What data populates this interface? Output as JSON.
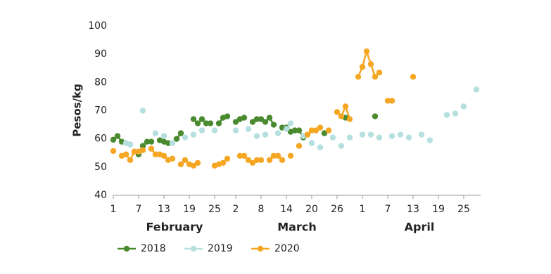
{
  "chart_data": {
    "type": "line",
    "y_label": "Pesos/kg",
    "xlim": [
      1,
      88
    ],
    "ylim": [
      40,
      100
    ],
    "yticks": [
      40,
      50,
      60,
      70,
      80,
      90,
      100
    ],
    "xticks": [
      {
        "value": 1,
        "label": "1"
      },
      {
        "value": 7,
        "label": "7"
      },
      {
        "value": 13,
        "label": "13"
      },
      {
        "value": 19,
        "label": "19"
      },
      {
        "value": 25,
        "label": "25"
      },
      {
        "value": 30,
        "label": "2"
      },
      {
        "value": 36,
        "label": "8"
      },
      {
        "value": 42,
        "label": "14"
      },
      {
        "value": 48,
        "label": "20"
      },
      {
        "value": 54,
        "label": "26"
      },
      {
        "value": 60,
        "label": "1"
      },
      {
        "value": 66,
        "label": "7"
      },
      {
        "value": 72,
        "label": "13"
      },
      {
        "value": 78,
        "label": "19"
      },
      {
        "value": 84,
        "label": "25"
      }
    ],
    "months": [
      "February",
      "March",
      "April"
    ],
    "grid": false,
    "series": [
      {
        "name": "2018",
        "color": "#4a8a2f",
        "x": [
          1,
          2,
          3,
          5,
          7,
          8,
          9,
          10,
          12,
          13,
          14,
          16,
          17,
          20,
          21,
          22,
          23,
          24,
          26,
          27,
          28,
          30,
          31,
          32,
          34,
          35,
          36,
          37,
          38,
          39,
          41,
          42,
          43,
          44,
          45,
          46,
          51,
          56,
          63
        ],
        "values": [
          59.7,
          61,
          59,
          58,
          54.5,
          57.5,
          59,
          59,
          59.5,
          59,
          58.5,
          60,
          62,
          67,
          65.5,
          67,
          65.5,
          65.5,
          65.5,
          67.5,
          68,
          66,
          67,
          67.5,
          66,
          67,
          67,
          66,
          67.5,
          65,
          64,
          64,
          62.5,
          63,
          63,
          60.5,
          62,
          67.5,
          68
        ]
      },
      {
        "name": "2019",
        "color": "#b6dfe0",
        "x": [
          4,
          5,
          8,
          11,
          13,
          15,
          18,
          20,
          22,
          25,
          30,
          33,
          35,
          37,
          40,
          42,
          43,
          46,
          48,
          50,
          53,
          55,
          57,
          60,
          62,
          64,
          67,
          69,
          71,
          74,
          76,
          80,
          82,
          84,
          87
        ],
        "values": [
          58.5,
          58,
          70,
          62,
          61,
          58.5,
          60.5,
          61.5,
          63,
          63,
          63,
          63.5,
          61,
          61.5,
          62,
          63.5,
          65.5,
          61,
          58.5,
          57,
          60.5,
          57.5,
          60.5,
          61.5,
          61.5,
          60.5,
          61,
          61.5,
          60.5,
          61.5,
          59.5,
          68.5,
          69,
          71.5,
          77.5
        ]
      },
      {
        "name": "2020",
        "color": "#f5a623",
        "x": [
          1,
          3,
          4,
          5,
          6,
          7,
          8,
          10,
          11,
          12,
          13,
          14,
          15,
          17,
          18,
          19,
          20,
          21,
          25,
          26,
          27,
          28,
          31,
          32,
          33,
          34,
          35,
          36,
          38,
          39,
          40,
          41,
          43,
          45,
          47,
          48,
          49,
          50,
          52,
          54,
          55,
          56,
          57,
          59,
          60,
          61,
          62,
          63,
          64,
          66,
          67,
          72
        ],
        "values": [
          55.7,
          54,
          54.5,
          52.5,
          55.5,
          55.5,
          56,
          56.5,
          54.5,
          54.5,
          54,
          52.5,
          53,
          51,
          52.5,
          51,
          50.5,
          51.5,
          50.5,
          51,
          51.5,
          53,
          54,
          54,
          52.5,
          51.5,
          52.5,
          52.5,
          52.5,
          54,
          54,
          52.5,
          54,
          57.5,
          61.5,
          63,
          63,
          64,
          63,
          69.5,
          68,
          71.5,
          67,
          82,
          85.5,
          91,
          86.5,
          82,
          83.5,
          73.5,
          73.5,
          82
        ]
      }
    ]
  }
}
